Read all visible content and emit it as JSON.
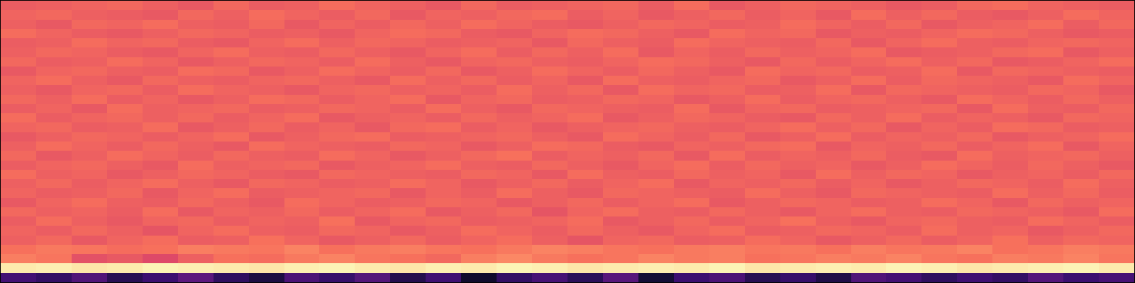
{
  "chart_data": {
    "type": "heatmap",
    "grid": false,
    "tick_labels": false,
    "xlim": [
      -0.5,
      31.5
    ],
    "ylim": [
      -0.5,
      29.5
    ],
    "zlim": [
      0,
      100
    ],
    "z": [
      [
        22,
        18,
        25,
        15,
        20,
        28,
        17,
        12,
        24,
        19,
        26,
        14,
        21,
        8,
        18,
        23,
        16,
        27,
        10,
        20,
        24,
        15,
        19,
        13,
        25,
        22,
        17,
        21,
        18,
        26,
        20,
        23
      ],
      [
        96,
        97,
        95,
        96,
        98,
        97,
        96,
        95,
        97,
        98,
        96,
        95,
        97,
        96,
        98,
        97,
        95,
        96,
        97,
        96,
        98,
        95,
        96,
        97,
        96,
        98,
        97,
        95,
        96,
        97,
        98,
        96
      ],
      [
        73,
        71,
        62,
        64,
        60,
        66,
        70,
        69,
        72,
        74,
        71,
        70,
        68,
        73,
        75,
        72,
        70,
        71,
        74,
        72,
        73,
        70,
        71,
        73,
        72,
        74,
        71,
        70,
        73,
        72,
        74,
        71
      ],
      [
        70,
        72,
        71,
        69,
        70,
        73,
        72,
        71,
        74,
        70,
        72,
        73,
        71,
        70,
        72,
        74,
        73,
        71,
        70,
        72,
        73,
        71,
        72,
        70,
        73,
        71,
        72,
        74,
        70,
        71,
        73,
        72
      ],
      [
        66,
        68,
        64,
        67,
        69,
        65,
        66,
        70,
        67,
        64,
        66,
        68,
        65,
        67,
        69,
        66,
        63,
        67,
        68,
        65,
        66,
        69,
        67,
        64,
        66,
        68,
        65,
        67,
        70,
        66,
        68,
        67
      ],
      [
        67,
        65,
        68,
        66,
        63,
        67,
        69,
        66,
        65,
        68,
        67,
        64,
        66,
        69,
        67,
        65,
        68,
        66,
        64,
        67,
        69,
        65,
        66,
        68,
        67,
        65,
        69,
        66,
        67,
        64,
        66,
        68
      ],
      [
        65,
        69,
        66,
        64,
        67,
        68,
        65,
        67,
        66,
        70,
        64,
        67,
        68,
        65,
        66,
        67,
        69,
        64,
        66,
        68,
        65,
        67,
        70,
        66,
        64,
        67,
        68,
        66,
        65,
        69,
        67,
        65
      ],
      [
        68,
        66,
        67,
        65,
        69,
        64,
        67,
        66,
        68,
        65,
        67,
        69,
        64,
        66,
        68,
        63,
        67,
        69,
        66,
        65,
        68,
        66,
        64,
        67,
        69,
        66,
        65,
        68,
        67,
        66,
        64,
        69
      ],
      [
        64,
        67,
        69,
        66,
        65,
        68,
        66,
        64,
        69,
        67,
        65,
        66,
        68,
        67,
        64,
        66,
        68,
        65,
        67,
        69,
        64,
        66,
        68,
        67,
        65,
        66,
        69,
        67,
        64,
        68,
        66,
        67
      ],
      [
        67,
        65,
        66,
        68,
        64,
        67,
        69,
        65,
        66,
        67,
        68,
        64,
        67,
        65,
        69,
        66,
        64,
        68,
        67,
        66,
        65,
        69,
        66,
        64,
        68,
        67,
        66,
        65,
        69,
        66,
        68,
        65
      ],
      [
        66,
        68,
        65,
        67,
        69,
        66,
        64,
        68,
        67,
        65,
        66,
        69,
        67,
        64,
        66,
        68,
        65,
        67,
        69,
        64,
        67,
        66,
        68,
        65,
        67,
        64,
        66,
        68,
        67,
        65,
        69,
        66
      ],
      [
        69,
        66,
        67,
        64,
        66,
        68,
        67,
        65,
        64,
        68,
        67,
        66,
        65,
        68,
        67,
        64,
        69,
        66,
        65,
        68,
        66,
        67,
        64,
        69,
        66,
        68,
        67,
        64,
        66,
        67,
        65,
        68
      ],
      [
        65,
        67,
        68,
        66,
        64,
        69,
        66,
        67,
        68,
        64,
        66,
        67,
        69,
        66,
        65,
        68,
        66,
        64,
        67,
        69,
        65,
        68,
        66,
        67,
        64,
        66,
        69,
        67,
        65,
        68,
        66,
        64
      ],
      [
        68,
        64,
        66,
        69,
        67,
        65,
        68,
        66,
        65,
        69,
        67,
        64,
        66,
        68,
        70,
        65,
        67,
        66,
        68,
        64,
        69,
        65,
        67,
        66,
        68,
        65,
        64,
        69,
        66,
        67,
        68,
        66
      ],
      [
        66,
        69,
        67,
        65,
        68,
        66,
        64,
        69,
        67,
        66,
        65,
        68,
        67,
        64,
        66,
        69,
        68,
        65,
        64,
        67,
        66,
        68,
        69,
        64,
        67,
        66,
        68,
        65,
        67,
        69,
        64,
        67
      ],
      [
        64,
        66,
        68,
        67,
        65,
        67,
        69,
        64,
        66,
        68,
        69,
        65,
        66,
        67,
        68,
        66,
        64,
        69,
        67,
        65,
        68,
        64,
        66,
        69,
        65,
        67,
        66,
        68,
        64,
        66,
        67,
        69
      ],
      [
        67,
        68,
        65,
        66,
        69,
        64,
        66,
        68,
        65,
        67,
        64,
        68,
        69,
        65,
        67,
        64,
        66,
        67,
        68,
        66,
        65,
        67,
        69,
        66,
        68,
        64,
        67,
        65,
        69,
        68,
        65,
        66
      ],
      [
        69,
        65,
        67,
        68,
        66,
        68,
        65,
        67,
        69,
        64,
        66,
        67,
        65,
        68,
        66,
        67,
        69,
        64,
        66,
        68,
        67,
        65,
        64,
        68,
        66,
        69,
        65,
        67,
        66,
        64,
        68,
        67
      ],
      [
        65,
        67,
        64,
        69,
        66,
        67,
        68,
        65,
        66,
        68,
        67,
        65,
        69,
        66,
        64,
        68,
        67,
        66,
        65,
        69,
        64,
        67,
        68,
        65,
        66,
        67,
        68,
        64,
        69,
        66,
        65,
        68
      ],
      [
        68,
        66,
        69,
        65,
        67,
        64,
        66,
        69,
        68,
        65,
        67,
        69,
        64,
        67,
        68,
        65,
        66,
        68,
        67,
        64,
        66,
        69,
        65,
        67,
        68,
        66,
        64,
        69,
        67,
        65,
        68,
        66
      ],
      [
        66,
        64,
        67,
        68,
        65,
        69,
        67,
        66,
        64,
        67,
        68,
        66,
        67,
        65,
        69,
        66,
        68,
        64,
        69,
        67,
        68,
        65,
        66,
        69,
        64,
        68,
        67,
        66,
        65,
        68,
        67,
        64
      ],
      [
        67,
        69,
        66,
        64,
        68,
        66,
        65,
        67,
        68,
        66,
        64,
        69,
        66,
        68,
        65,
        67,
        64,
        69,
        66,
        65,
        67,
        68,
        64,
        66,
        69,
        65,
        68,
        67,
        66,
        64,
        69,
        67
      ],
      [
        64,
        67,
        68,
        66,
        65,
        69,
        68,
        64,
        66,
        69,
        67,
        65,
        68,
        64,
        66,
        69,
        67,
        65,
        68,
        66,
        64,
        69,
        67,
        68,
        65,
        66,
        69,
        64,
        68,
        67,
        66,
        65
      ],
      [
        68,
        65,
        66,
        69,
        67,
        64,
        66,
        68,
        67,
        65,
        69,
        66,
        64,
        67,
        68,
        66,
        65,
        67,
        69,
        68,
        66,
        64,
        68,
        65,
        67,
        69,
        66,
        68,
        64,
        65,
        67,
        69
      ],
      [
        66,
        68,
        67,
        65,
        64,
        67,
        69,
        66,
        65,
        68,
        66,
        64,
        67,
        69,
        65,
        68,
        66,
        69,
        64,
        67,
        65,
        68,
        66,
        67,
        69,
        64,
        65,
        66,
        68,
        69,
        64,
        66
      ],
      [
        65,
        66,
        69,
        67,
        68,
        65,
        64,
        67,
        69,
        66,
        68,
        67,
        65,
        66,
        67,
        64,
        68,
        66,
        65,
        69,
        67,
        66,
        65,
        68,
        64,
        67,
        69,
        66,
        65,
        67,
        68,
        67
      ],
      [
        69,
        67,
        65,
        64,
        66,
        68,
        67,
        65,
        66,
        64,
        67,
        69,
        68,
        65,
        64,
        67,
        69,
        68,
        66,
        64,
        69,
        67,
        68,
        64,
        66,
        65,
        67,
        69,
        68,
        66,
        64,
        65
      ],
      [
        66,
        64,
        68,
        67,
        69,
        66,
        65,
        68,
        64,
        67,
        65,
        68,
        66,
        69,
        67,
        65,
        64,
        66,
        68,
        67,
        65,
        66,
        69,
        67,
        65,
        68,
        64,
        66,
        67,
        69,
        65,
        68
      ],
      [
        67,
        68,
        66,
        65,
        64,
        68,
        66,
        69,
        67,
        65,
        68,
        64,
        67,
        66,
        68,
        69,
        65,
        67,
        64,
        66,
        68,
        65,
        67,
        64,
        69,
        66,
        68,
        65,
        64,
        66,
        69,
        67
      ],
      [
        65,
        66,
        67,
        68,
        66,
        64,
        68,
        65,
        66,
        69,
        67,
        66,
        64,
        68,
        65,
        66,
        67,
        68,
        65,
        69,
        64,
        66,
        68,
        67,
        66,
        64,
        65,
        68,
        69,
        67,
        66,
        65
      ]
    ]
  }
}
